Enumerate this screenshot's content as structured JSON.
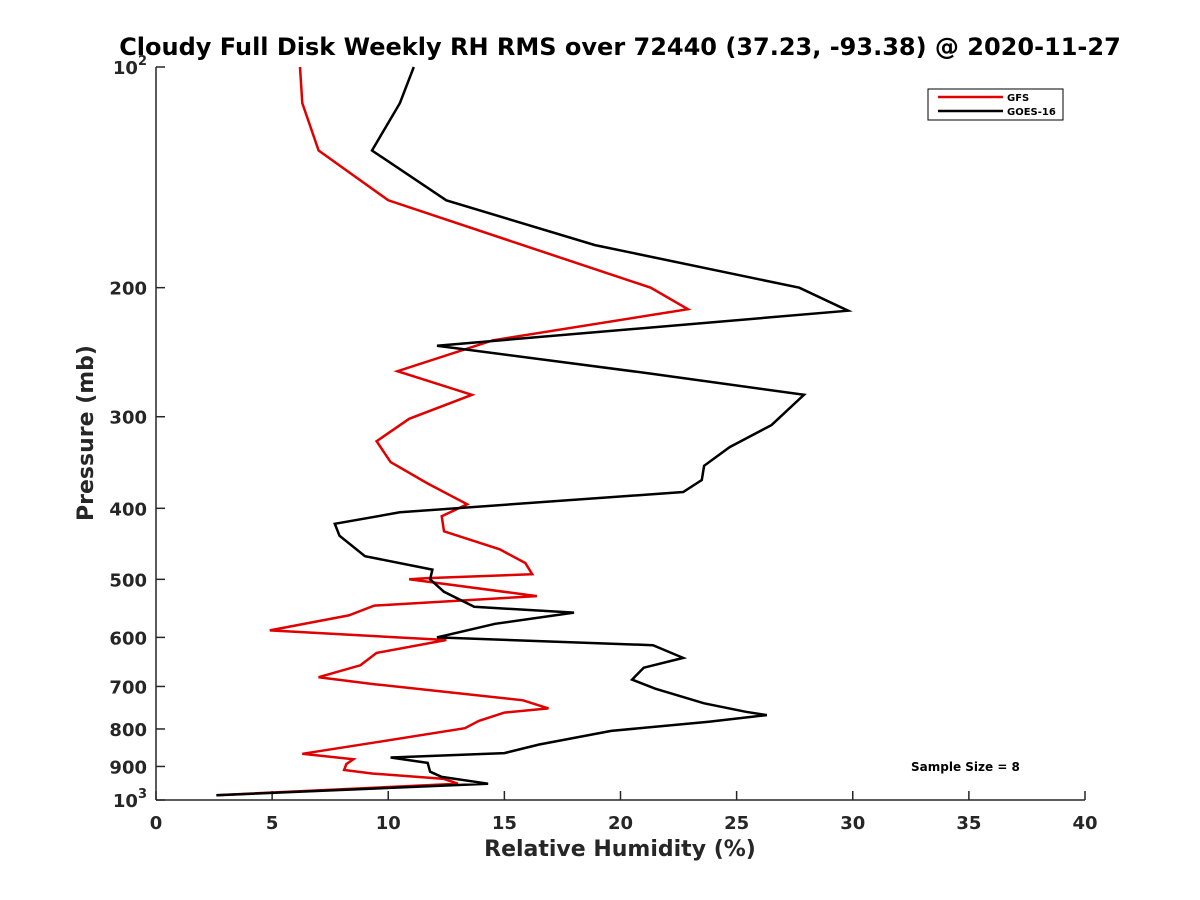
{
  "chart_data": {
    "type": "line",
    "title": "Cloudy Full Disk Weekly RH RMS over 72440 (37.23, -93.38) @ 2020-11-27",
    "xlabel": "Relative Humidity (%)",
    "ylabel": "Pressure (mb)",
    "xlim": [
      0,
      40
    ],
    "ylim": [
      100,
      1000
    ],
    "yscale": "log",
    "y_reversed": true,
    "grid": false,
    "legend_position": "top-right",
    "x_ticks": [
      "0",
      "5",
      "10",
      "15",
      "20",
      "25",
      "30",
      "35",
      "40"
    ],
    "x_tick_values": [
      0,
      5,
      10,
      15,
      20,
      25,
      30,
      35,
      40
    ],
    "y_ticks": [
      {
        "value": 100,
        "base": "10",
        "exp": "2",
        "text": ""
      },
      {
        "value": 200,
        "base": "",
        "exp": "",
        "text": "200"
      },
      {
        "value": 300,
        "base": "",
        "exp": "",
        "text": "300"
      },
      {
        "value": 400,
        "base": "",
        "exp": "",
        "text": "400"
      },
      {
        "value": 500,
        "base": "",
        "exp": "",
        "text": "500"
      },
      {
        "value": 600,
        "base": "",
        "exp": "",
        "text": "600"
      },
      {
        "value": 700,
        "base": "",
        "exp": "",
        "text": "700"
      },
      {
        "value": 800,
        "base": "",
        "exp": "",
        "text": "800"
      },
      {
        "value": 900,
        "base": "",
        "exp": "",
        "text": "900"
      },
      {
        "value": 1000,
        "base": "10",
        "exp": "3",
        "text": ""
      }
    ],
    "series": [
      {
        "name": "GFS",
        "color": "#e00000",
        "x": [
          6.2,
          6.3,
          7.0,
          10.0,
          21.3,
          22.9,
          14.5,
          10.4,
          13.6,
          10.9,
          9.5,
          10.1,
          11.7,
          13.4,
          12.3,
          12.4,
          14.8,
          15.9,
          16.2,
          11.7,
          10.9,
          16.4,
          9.4,
          8.3,
          4.9,
          12.5,
          9.5,
          8.8,
          7.0,
          9.4,
          15.8,
          16.9,
          15.0,
          13.9,
          13.3,
          9.5,
          6.3,
          8.5,
          8.2,
          8.1,
          9.3,
          12.4,
          13.0,
          2.6
        ],
        "y": [
          100,
          112,
          130,
          152,
          200,
          214,
          236,
          260,
          280,
          302,
          324,
          346,
          370,
          395,
          410,
          430,
          455,
          475,
          492,
          498,
          500,
          527,
          543,
          560,
          587,
          605,
          630,
          655,
          680,
          695,
          731,
          750,
          760,
          780,
          798,
          834,
          865,
          880,
          893,
          910,
          920,
          936,
          950,
          985
        ]
      },
      {
        "name": "GOES-16",
        "color": "#000000",
        "x": [
          11.1,
          10.5,
          9.3,
          12.5,
          18.9,
          27.7,
          29.8,
          12.1,
          21.3,
          27.9,
          26.5,
          24.7,
          23.6,
          23.5,
          22.7,
          10.5,
          7.7,
          7.9,
          9.0,
          11.9,
          11.8,
          12.4,
          13.7,
          18.0,
          14.6,
          12.1,
          21.4,
          22.7,
          21.0,
          20.5,
          21.5,
          23.6,
          25.4,
          26.3,
          23.8,
          19.6,
          16.5,
          15.0,
          10.1,
          11.7,
          11.8,
          12.3,
          14.3,
          2.6
        ],
        "y": [
          100,
          112,
          130,
          152,
          175,
          200,
          215,
          240,
          262,
          280,
          308,
          330,
          350,
          366,
          380,
          405,
          420,
          436,
          465,
          485,
          500,
          520,
          545,
          555,
          575,
          600,
          615,
          640,
          660,
          685,
          705,
          738,
          758,
          766,
          782,
          805,
          840,
          863,
          875,
          890,
          915,
          930,
          950,
          985
        ]
      }
    ],
    "annotations": [
      "Sample Size = 8"
    ]
  }
}
